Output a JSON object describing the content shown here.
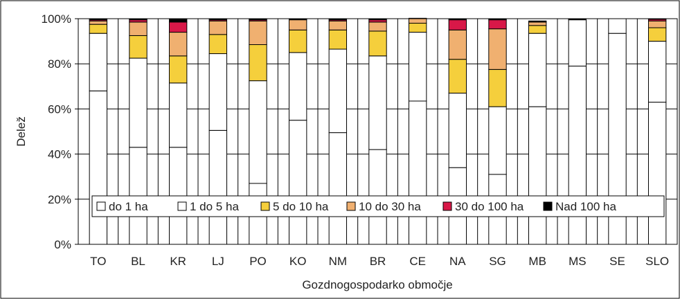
{
  "chart_data": {
    "type": "bar",
    "stacked": true,
    "percent": true,
    "xlabel": "Gozdnogospodarko območje",
    "ylabel": "Delež",
    "ylim": [
      0,
      100
    ],
    "yticks": [
      "0%",
      "20%",
      "40%",
      "60%",
      "80%",
      "100%"
    ],
    "grid": true,
    "legend_position": "inside-bottom",
    "categories": [
      "TO",
      "BL",
      "KR",
      "LJ",
      "PO",
      "KO",
      "NM",
      "BR",
      "CE",
      "NA",
      "SG",
      "MB",
      "MS",
      "SE",
      "SLO"
    ],
    "series": [
      {
        "name": "do 1 ha",
        "color": "#ffffff",
        "values": [
          68,
          43,
          43,
          50.5,
          27,
          55,
          49.5,
          42,
          63.5,
          34,
          31,
          61,
          79,
          93.5,
          63
        ]
      },
      {
        "name": "1 do 5 ha",
        "color": "#ffffff",
        "values": [
          25.5,
          39.5,
          28.5,
          34,
          45.5,
          30,
          37,
          41.5,
          30.5,
          33,
          30,
          32.5,
          20.5,
          6.5,
          27
        ]
      },
      {
        "name": "5 do 10 ha",
        "color": "#f5cf3c",
        "values": [
          4,
          10,
          12,
          8.5,
          16,
          10,
          8.5,
          11,
          4,
          15,
          16.5,
          3.5,
          0.3,
          0,
          6
        ]
      },
      {
        "name": "10 do 30 ha",
        "color": "#f0b070",
        "values": [
          1.5,
          6,
          10.5,
          6,
          10.5,
          4.5,
          4,
          4,
          2,
          13,
          18,
          1.5,
          0.1,
          0,
          3
        ]
      },
      {
        "name": "30 do 100 ha",
        "color": "#d81848",
        "values": [
          0.5,
          1,
          4.5,
          0.5,
          0.5,
          0.3,
          0.5,
          1,
          0.2,
          4.5,
          4,
          0.2,
          0.1,
          0,
          0.7
        ]
      },
      {
        "name": "Nad 100 ha",
        "color": "#000000",
        "values": [
          0.5,
          0.5,
          1.5,
          0.5,
          0.5,
          0.2,
          0.5,
          0.5,
          0,
          0.5,
          0.5,
          0.3,
          0,
          0,
          0.3
        ]
      }
    ]
  }
}
